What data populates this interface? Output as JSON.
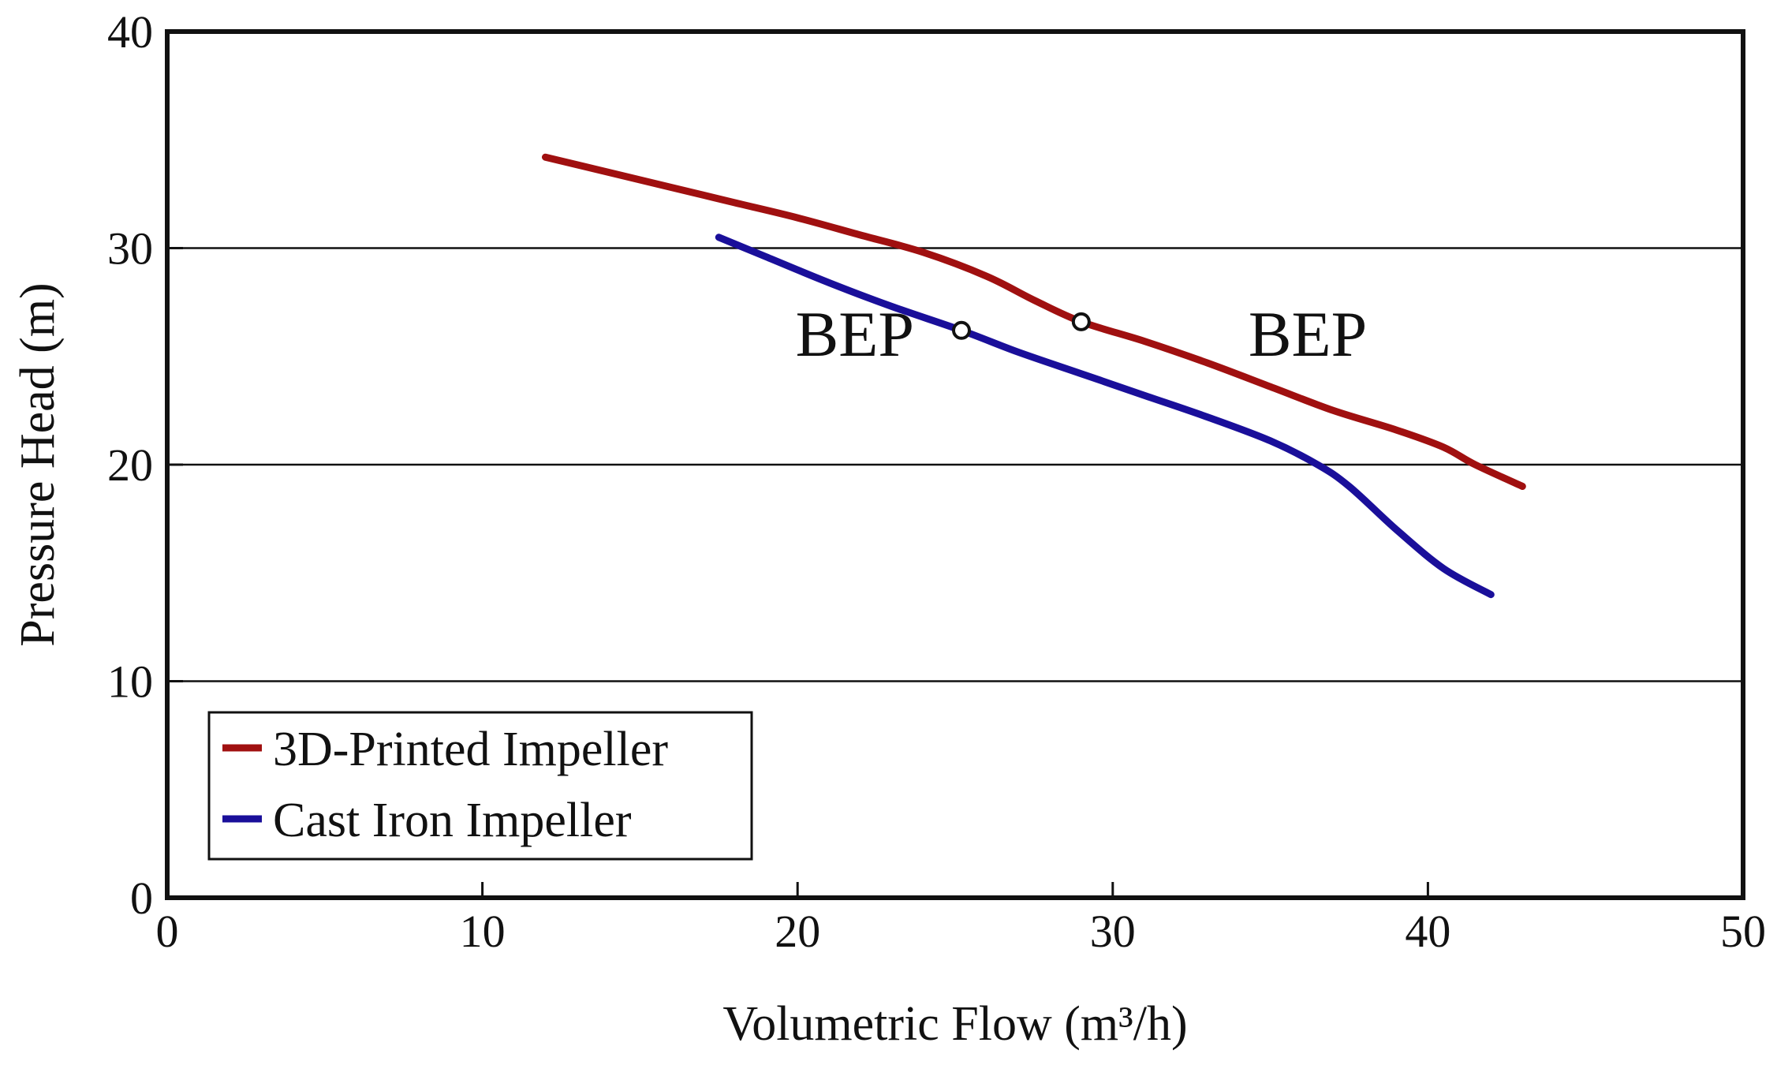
{
  "chart_data": {
    "type": "line",
    "title": "",
    "xlabel": "Volumetric Flow (m³/h)",
    "ylabel": "Pressure Head (m)",
    "xlim": [
      0,
      50
    ],
    "ylim": [
      0,
      40
    ],
    "xticks": [
      0,
      10,
      20,
      30,
      40,
      50
    ],
    "yticks": [
      0,
      10,
      20,
      30,
      40
    ],
    "grid": {
      "horizontal": [
        10,
        20,
        30
      ],
      "vertical": false
    },
    "legend_position": "bottom-left",
    "series": [
      {
        "name": "3D-Printed Impeller",
        "color": "#a01010",
        "x": [
          12,
          14,
          16,
          18,
          20,
          22,
          24,
          26,
          27.5,
          29,
          31,
          33,
          35,
          37,
          39,
          40.5,
          41.5,
          43
        ],
        "y": [
          34.2,
          33.5,
          32.8,
          32.1,
          31.4,
          30.6,
          29.8,
          28.7,
          27.6,
          26.6,
          25.7,
          24.7,
          23.6,
          22.5,
          21.6,
          20.8,
          20.0,
          19.0
        ],
        "bep": {
          "x": 29,
          "y": 26.6,
          "label": "BEP"
        }
      },
      {
        "name": "Cast Iron Impeller",
        "color": "#1a0f9a",
        "x": [
          17.5,
          19,
          21,
          23,
          25.2,
          27,
          29,
          31,
          33,
          35,
          36.5,
          37.5,
          39,
          40.5,
          42
        ],
        "y": [
          30.5,
          29.6,
          28.4,
          27.3,
          26.2,
          25.2,
          24.2,
          23.2,
          22.2,
          21.1,
          20.0,
          19.0,
          17.0,
          15.2,
          14.0
        ],
        "bep": {
          "x": 25.2,
          "y": 26.2,
          "label": "BEP"
        }
      }
    ]
  }
}
